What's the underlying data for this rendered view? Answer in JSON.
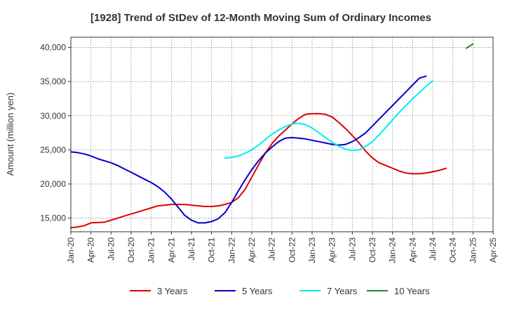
{
  "chart_data": {
    "type": "line",
    "title": "[1928]  Trend of StDev of 12-Month Moving Sum of Ordinary Incomes",
    "xlabel": "",
    "ylabel": "Amount (million yen)",
    "ylim": [
      13000,
      41500
    ],
    "xlim": [
      "Jan-20",
      "Apr-25"
    ],
    "grid": true,
    "legend_position": "bottom",
    "x_tick_labels": [
      "Jan-20",
      "Apr-20",
      "Jul-20",
      "Oct-20",
      "Jan-21",
      "Apr-21",
      "Jul-21",
      "Oct-21",
      "Jan-22",
      "Apr-22",
      "Jul-22",
      "Oct-22",
      "Jan-23",
      "Apr-23",
      "Jul-23",
      "Oct-23",
      "Jan-24",
      "Apr-24",
      "Jul-24",
      "Oct-24",
      "Jan-25",
      "Apr-25"
    ],
    "y_ticks": [
      15000,
      20000,
      25000,
      30000,
      35000,
      40000
    ],
    "y_tick_labels": [
      "15,000",
      "20,000",
      "25,000",
      "30,000",
      "35,000",
      "40,000"
    ],
    "series": [
      {
        "name": "3 Years",
        "color": "#dd0000",
        "start": "Jan-20",
        "values": [
          13600,
          13700,
          13900,
          14300,
          14350,
          14400,
          14700,
          15000,
          15300,
          15600,
          15900,
          16200,
          16500,
          16800,
          16900,
          17000,
          17000,
          17000,
          16900,
          16800,
          16700,
          16700,
          16800,
          17000,
          17300,
          18000,
          19200,
          21000,
          22800,
          24500,
          25900,
          27000,
          27900,
          28800,
          29600,
          30200,
          30300,
          30300,
          30200,
          29800,
          29000,
          28100,
          27100,
          26000,
          24800,
          23800,
          23100,
          22700,
          22300,
          21900,
          21600,
          21500,
          21500,
          21600,
          21800,
          22000,
          22300
        ]
      },
      {
        "name": "5 Years",
        "color": "#0000cc",
        "start": "Jan-20",
        "values": [
          24700,
          24600,
          24400,
          24100,
          23700,
          23400,
          23100,
          22700,
          22200,
          21700,
          21200,
          20700,
          20200,
          19600,
          18800,
          17800,
          16600,
          15400,
          14700,
          14300,
          14300,
          14500,
          14900,
          15800,
          17300,
          19000,
          20600,
          22100,
          23400,
          24500,
          25400,
          26200,
          26700,
          26800,
          26700,
          26600,
          26400,
          26200,
          26000,
          25800,
          25700,
          25800,
          26200,
          26800,
          27500,
          28500,
          29500,
          30500,
          31500,
          32500,
          33500,
          34500,
          35500,
          35800
        ]
      },
      {
        "name": "7 Years",
        "color": "#00eeee",
        "start": "Dec-21",
        "values": [
          23800,
          23900,
          24100,
          24500,
          25000,
          25700,
          26500,
          27300,
          27900,
          28400,
          28800,
          28900,
          28700,
          28200,
          27500,
          26800,
          26100,
          25500,
          25100,
          24900,
          25000,
          25500,
          26200,
          27200,
          28300,
          29400,
          30500,
          31500,
          32500,
          33400,
          34300,
          35100
        ]
      },
      {
        "name": "10 Years",
        "color": "#228822",
        "start": "Dec-24",
        "values": [
          39900,
          40500
        ]
      }
    ]
  }
}
